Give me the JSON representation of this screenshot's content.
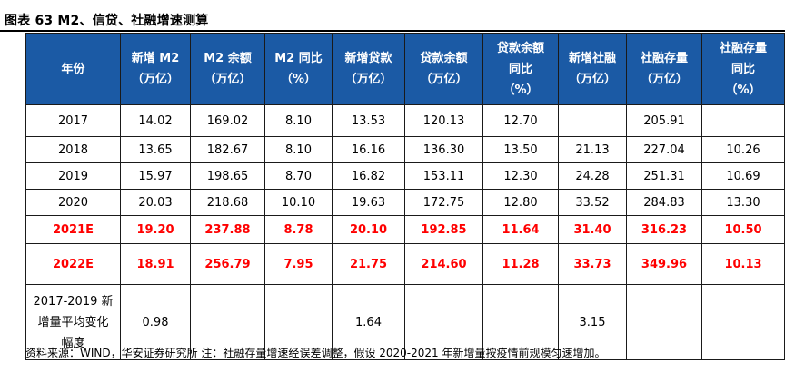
{
  "title": "图表  63 M2、信贷、社融增速测算",
  "table": {
    "headers": [
      "年份",
      "新增 M2\n（万亿）",
      "M2 余额\n（万亿）",
      "M2 同比\n（%）",
      "新增贷款\n（万亿）",
      "贷款余额\n（万亿）",
      "贷款余额\n同比\n（%）",
      "新增社融\n（万亿）",
      "社融存量\n（万亿）",
      "社融存量\n同比\n（%）"
    ],
    "rows": [
      {
        "label": "2017",
        "values": [
          "14.02",
          "169.02",
          "8.10",
          "13.53",
          "120.13",
          "12.70",
          "",
          "205.91",
          ""
        ]
      },
      {
        "label": "2018",
        "values": [
          "13.65",
          "182.67",
          "8.10",
          "16.16",
          "136.30",
          "13.50",
          "21.13",
          "227.04",
          "10.26"
        ]
      },
      {
        "label": "2019",
        "values": [
          "15.97",
          "198.65",
          "8.70",
          "16.82",
          "153.11",
          "12.30",
          "24.28",
          "251.31",
          "10.69"
        ]
      },
      {
        "label": "2020",
        "values": [
          "20.03",
          "218.68",
          "10.10",
          "19.63",
          "172.75",
          "12.80",
          "33.52",
          "284.83",
          "13.30"
        ]
      },
      {
        "label": "2021E",
        "values": [
          "19.20",
          "237.88",
          "8.78",
          "20.10",
          "192.85",
          "11.64",
          "31.40",
          "316.23",
          "10.50"
        ]
      },
      {
        "label": "2022E",
        "values": [
          "18.91",
          "256.79",
          "7.95",
          "21.75",
          "214.60",
          "11.28",
          "33.73",
          "349.96",
          "10.13"
        ]
      },
      {
        "label": "2017-2019 新\n增量平均变化\n幅度",
        "values": [
          "0.98",
          "",
          "",
          "1.64",
          "",
          "",
          "3.15",
          "",
          ""
        ]
      }
    ]
  },
  "footer": "资料来源：WIND，华安证券研究所  注：社融存量增速经误差调整，假设 2020-2021 年新增量按疫情前规模匀速增加。",
  "colors": {
    "header_bg": "#1b5aa5",
    "header_text": "#ffffff",
    "forecast_text": "#ff0000"
  }
}
